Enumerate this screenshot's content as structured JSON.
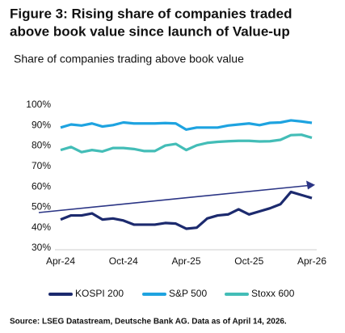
{
  "chart_data": {
    "type": "line",
    "title": [
      "Figure 3: Rising share of companies traded",
      "above book value since launch of Value-up"
    ],
    "subtitle": "Share of companies trading above book value",
    "categories": [
      "Apr-24",
      null,
      null,
      null,
      null,
      null,
      "Oct-24",
      null,
      null,
      null,
      null,
      null,
      "Apr-25",
      null,
      null,
      null,
      null,
      null,
      "Oct-25",
      null,
      null,
      null,
      null,
      null,
      "Apr-26"
    ],
    "series": [
      {
        "name": "KOSPI 200",
        "color": "#1c2a6e",
        "values": [
          44,
          46,
          46,
          47,
          44,
          44.5,
          43.5,
          41.5,
          41.5,
          41.5,
          42.3,
          42,
          39.5,
          40,
          44.5,
          46,
          46.5,
          49,
          46.5,
          48,
          49.5,
          51.5,
          57.5,
          56,
          54.5
        ]
      },
      {
        "name": "S&P 500",
        "color": "#1ea3e0",
        "values": [
          89,
          90.5,
          90,
          91,
          89.5,
          90.2,
          91.5,
          91,
          91,
          91,
          91.2,
          91,
          88,
          89,
          89,
          89,
          90,
          90.5,
          91,
          90.2,
          91.3,
          91.5,
          92.5,
          92,
          91.3
        ]
      },
      {
        "name": "Stoxx 600",
        "color": "#43bdb7",
        "values": [
          78,
          79.5,
          77,
          78,
          77.3,
          79,
          79,
          78.5,
          77.5,
          77.5,
          80.2,
          81,
          78,
          80.3,
          81.5,
          82,
          82.3,
          82.5,
          82.5,
          82.2,
          82.3,
          83,
          85.3,
          85.5,
          84
        ]
      }
    ],
    "ylim": [
      30,
      100
    ],
    "yticks": [
      {
        "value": 30,
        "label": "30%"
      },
      {
        "value": 40,
        "label": "40%"
      },
      {
        "value": 50,
        "label": "50%"
      },
      {
        "value": 60,
        "label": "60%"
      },
      {
        "value": 70,
        "label": "70%"
      },
      {
        "value": 80,
        "label": "80%"
      },
      {
        "value": 90,
        "label": "90%"
      },
      {
        "value": 100,
        "label": "100%"
      }
    ],
    "grid": false,
    "legend": "bottom",
    "source": "Source: LSEG Datastream, Deutsche Bank AG. Data as of April 14, 2026."
  }
}
